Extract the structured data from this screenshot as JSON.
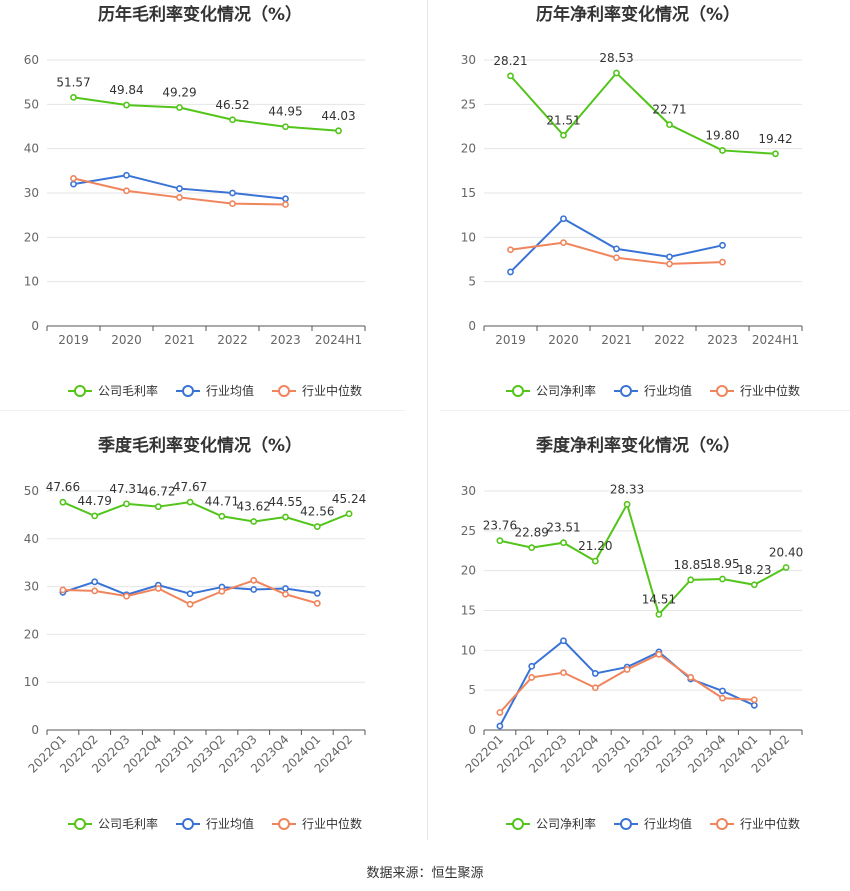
{
  "colors": {
    "company": "#52c41a",
    "industry_avg": "#3a73d6",
    "industry_median": "#f0845c",
    "grid": "#e5e5e5",
    "axis": "#555555",
    "title": "#333333"
  },
  "source": "数据来源：恒生聚源",
  "chart_data": [
    {
      "type": "line",
      "title": "历年毛利率变化情况（%）",
      "categories": [
        "2019",
        "2020",
        "2021",
        "2022",
        "2023",
        "2024H1"
      ],
      "ylim": [
        0,
        60
      ],
      "yticks": [
        0,
        10,
        20,
        30,
        40,
        50,
        60
      ],
      "grid": true,
      "legend_position": "bottom",
      "series": [
        {
          "name": "公司毛利率",
          "role": "company",
          "values": [
            51.57,
            49.84,
            49.29,
            46.52,
            44.95,
            44.03
          ],
          "show_labels": true
        },
        {
          "name": "行业均值",
          "role": "industry_avg",
          "values": [
            32.0,
            34.0,
            31.0,
            30.0,
            28.7,
            null
          ],
          "show_labels": false
        },
        {
          "name": "行业中位数",
          "role": "industry_median",
          "values": [
            33.3,
            30.5,
            29.0,
            27.6,
            27.4,
            null
          ],
          "show_labels": false
        }
      ]
    },
    {
      "type": "line",
      "title": "历年净利率变化情况（%）",
      "categories": [
        "2019",
        "2020",
        "2021",
        "2022",
        "2023",
        "2024H1"
      ],
      "ylim": [
        0,
        30
      ],
      "yticks": [
        0,
        5,
        10,
        15,
        20,
        25,
        30
      ],
      "grid": true,
      "legend_position": "bottom",
      "series": [
        {
          "name": "公司净利率",
          "role": "company",
          "values": [
            28.21,
            21.51,
            28.53,
            22.71,
            19.8,
            19.42
          ],
          "show_labels": true
        },
        {
          "name": "行业均值",
          "role": "industry_avg",
          "values": [
            6.1,
            12.1,
            8.7,
            7.8,
            9.1,
            null
          ],
          "show_labels": false
        },
        {
          "name": "行业中位数",
          "role": "industry_median",
          "values": [
            8.6,
            9.4,
            7.7,
            7.0,
            7.2,
            null
          ],
          "show_labels": false
        }
      ]
    },
    {
      "type": "line",
      "title": "季度毛利率变化情况（%）",
      "categories": [
        "2022Q1",
        "2022Q2",
        "2022Q3",
        "2022Q4",
        "2023Q1",
        "2023Q2",
        "2023Q3",
        "2023Q4",
        "2024Q1",
        "2024Q2"
      ],
      "ylim": [
        0,
        50
      ],
      "yticks": [
        0,
        10,
        20,
        30,
        40,
        50
      ],
      "grid": true,
      "legend_position": "bottom",
      "series": [
        {
          "name": "公司毛利率",
          "role": "company",
          "values": [
            47.66,
            44.79,
            47.31,
            46.72,
            47.67,
            44.71,
            43.62,
            44.55,
            42.56,
            45.24
          ],
          "show_labels": true
        },
        {
          "name": "行业均值",
          "role": "industry_avg",
          "values": [
            28.8,
            31.0,
            28.3,
            30.3,
            28.5,
            29.9,
            29.4,
            29.6,
            28.6,
            null
          ],
          "show_labels": false
        },
        {
          "name": "行业中位数",
          "role": "industry_median",
          "values": [
            29.3,
            29.1,
            28.0,
            29.6,
            26.3,
            29.0,
            31.3,
            28.4,
            26.5,
            null
          ],
          "show_labels": false
        }
      ]
    },
    {
      "type": "line",
      "title": "季度净利率变化情况（%）",
      "categories": [
        "2022Q1",
        "2022Q2",
        "2022Q3",
        "2022Q4",
        "2023Q1",
        "2023Q2",
        "2023Q3",
        "2023Q4",
        "2024Q1",
        "2024Q2"
      ],
      "ylim": [
        0,
        30
      ],
      "yticks": [
        0,
        5,
        10,
        15,
        20,
        25,
        30
      ],
      "grid": true,
      "legend_position": "bottom",
      "series": [
        {
          "name": "公司净利率",
          "role": "company",
          "values": [
            23.76,
            22.89,
            23.51,
            21.2,
            28.33,
            14.51,
            18.85,
            18.95,
            18.23,
            20.4
          ],
          "show_labels": true
        },
        {
          "name": "行业均值",
          "role": "industry_avg",
          "values": [
            0.5,
            8.0,
            11.2,
            7.1,
            7.9,
            9.8,
            6.4,
            4.9,
            3.1,
            null
          ],
          "show_labels": false
        },
        {
          "name": "行业中位数",
          "role": "industry_median",
          "values": [
            2.2,
            6.6,
            7.2,
            5.3,
            7.6,
            9.5,
            6.6,
            4.0,
            3.8,
            null
          ],
          "show_labels": false
        }
      ]
    }
  ]
}
